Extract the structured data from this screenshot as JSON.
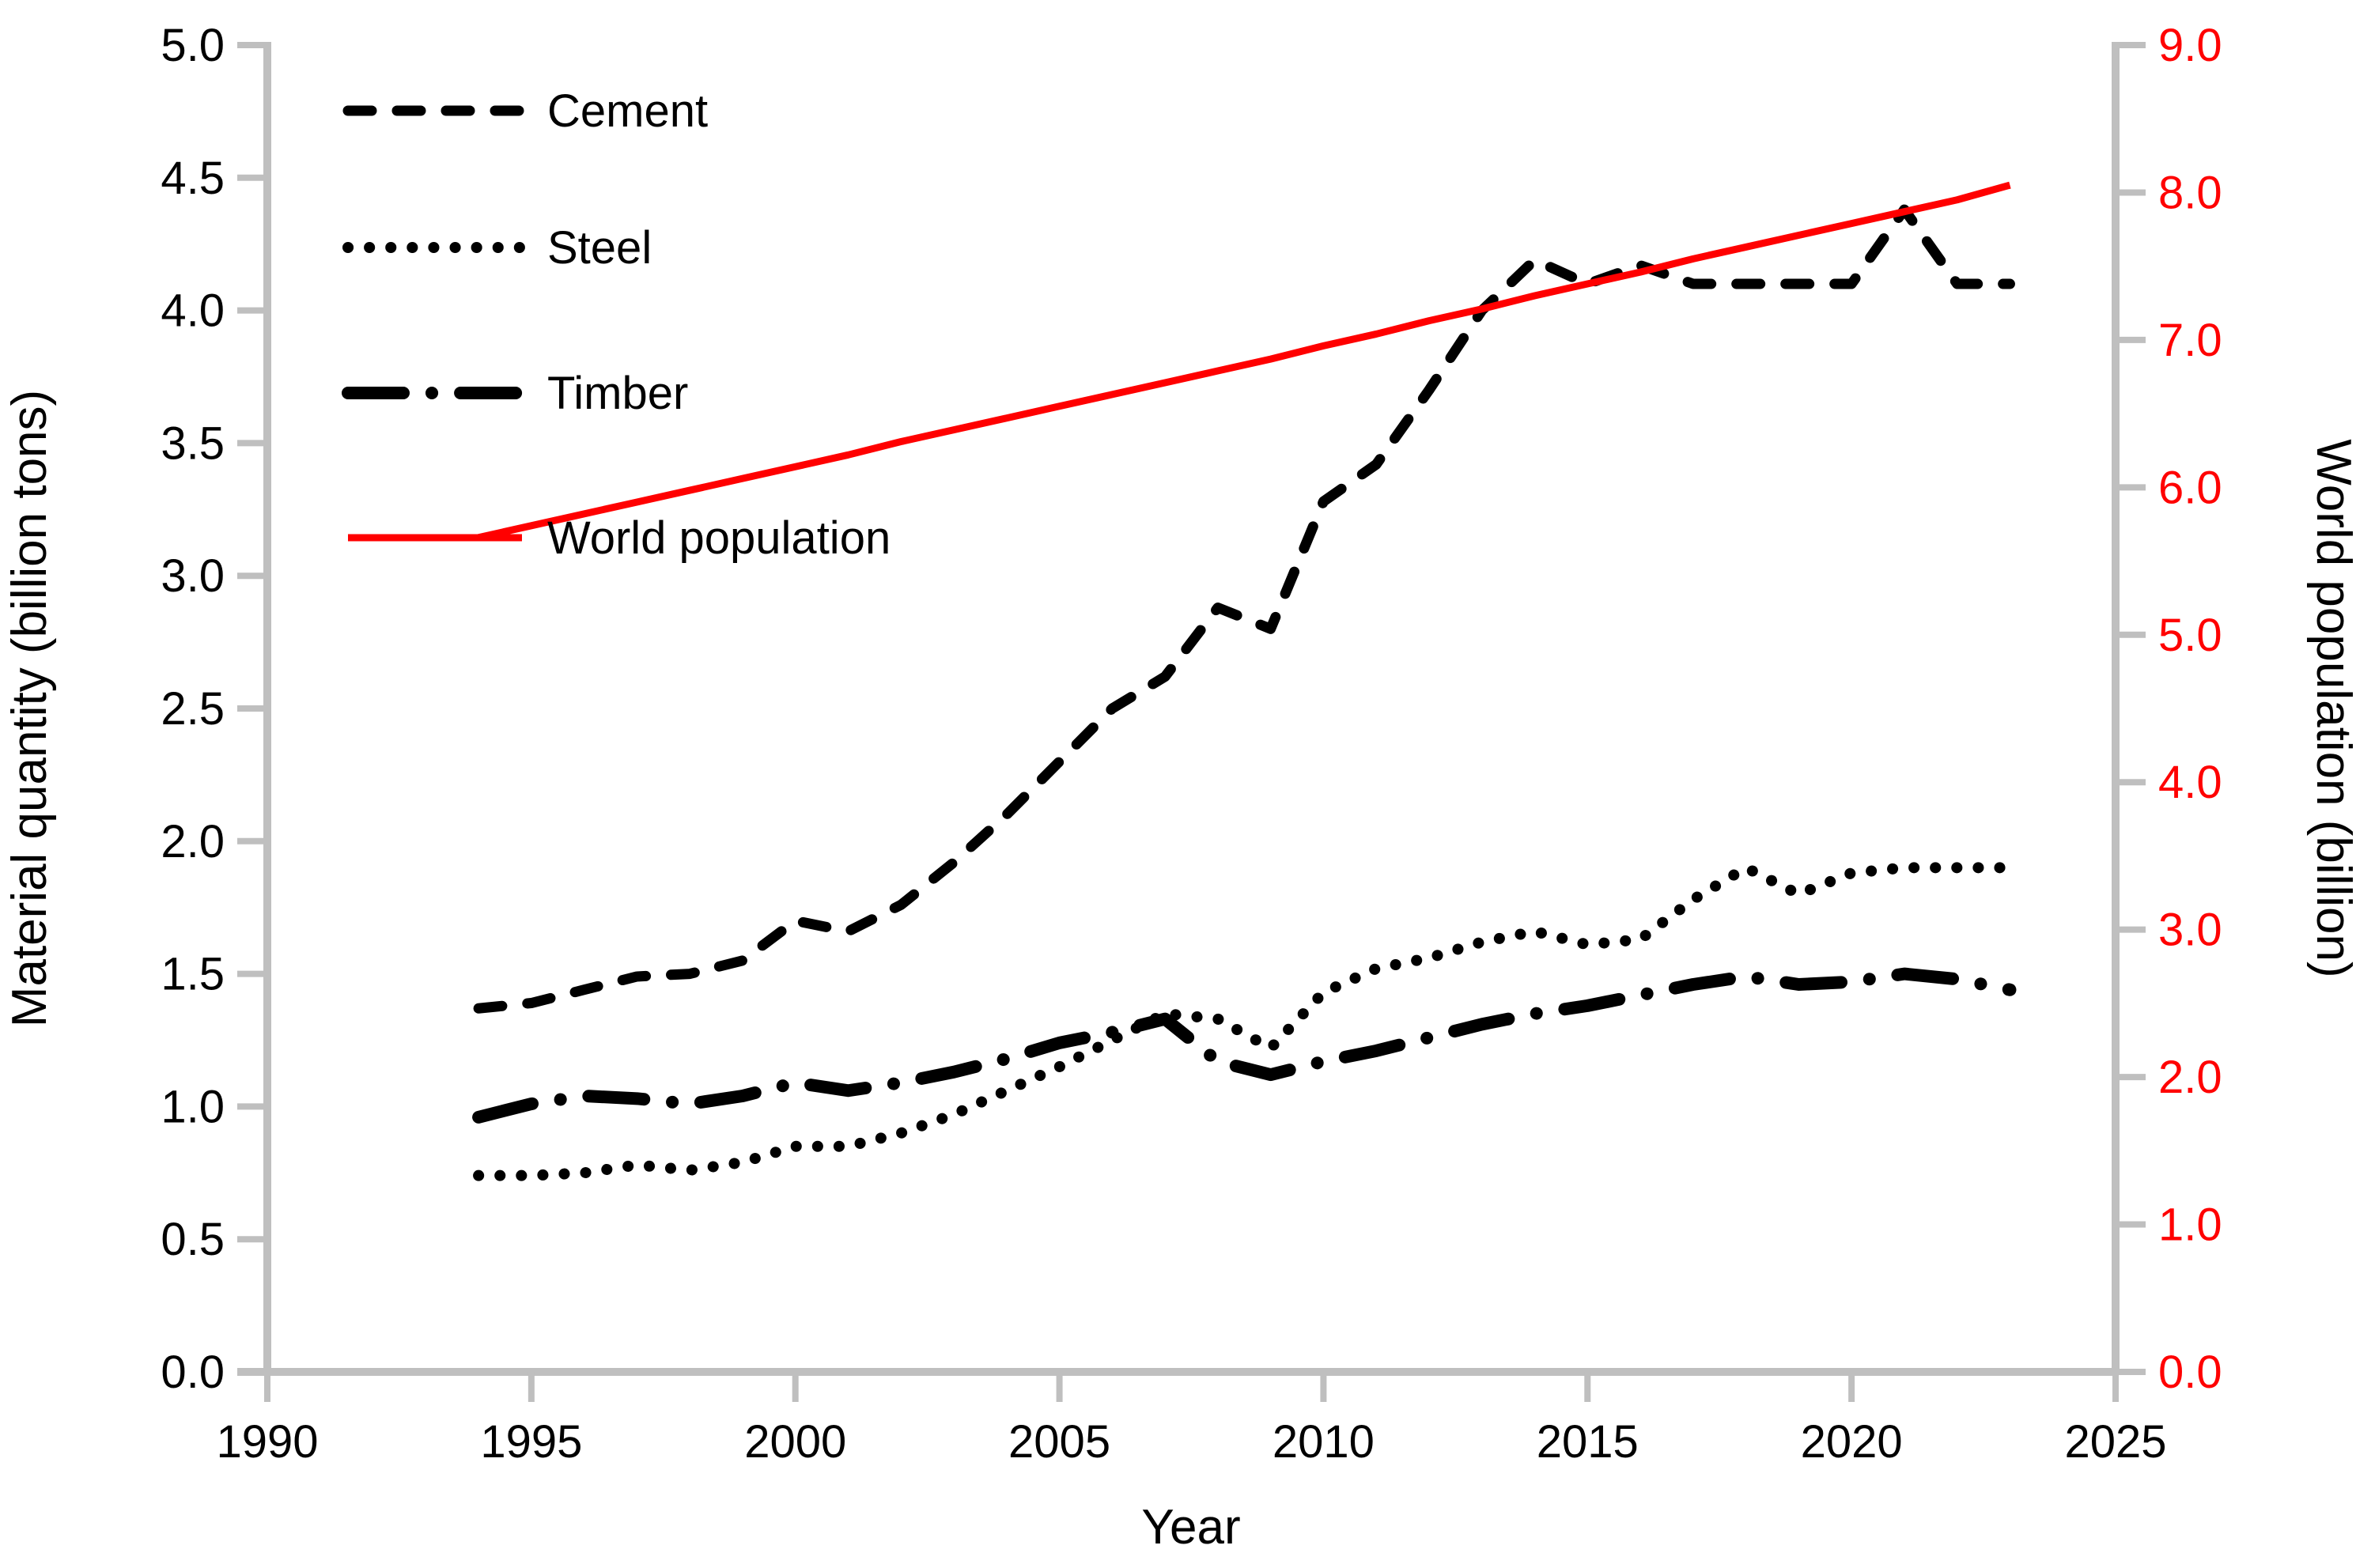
{
  "chart_data": {
    "type": "line",
    "title": "",
    "xlabel": "Year",
    "ylabel_left": "Material quantity (billion tons)",
    "ylabel_right": "World population (billion)",
    "xlim": [
      1990,
      2025
    ],
    "ylim_left": [
      0.0,
      5.0
    ],
    "ylim_right": [
      0.0,
      9.0
    ],
    "grid": "off",
    "legend_position": "top-left-inside",
    "x_ticks": [
      "1990",
      "1995",
      "2000",
      "2005",
      "2010",
      "2015",
      "2020",
      "2025"
    ],
    "left_ticks": [
      "0.0",
      "0.5",
      "1.0",
      "1.5",
      "2.0",
      "2.5",
      "3.0",
      "3.5",
      "4.0",
      "4.5",
      "5.0"
    ],
    "right_ticks": [
      "0.0",
      "1.0",
      "2.0",
      "3.0",
      "4.0",
      "5.0",
      "6.0",
      "7.0",
      "8.0",
      "9.0"
    ],
    "x": [
      1994,
      1995,
      1996,
      1997,
      1998,
      1999,
      2000,
      2001,
      2002,
      2003,
      2004,
      2005,
      2006,
      2007,
      2008,
      2009,
      2010,
      2011,
      2012,
      2013,
      2014,
      2015,
      2016,
      2017,
      2018,
      2019,
      2020,
      2021,
      2022,
      2023
    ],
    "series": [
      {
        "name": "Cement",
        "axis": "left",
        "style": "dashed",
        "color": "#000000",
        "values": [
          1.37,
          1.39,
          1.44,
          1.49,
          1.5,
          1.55,
          1.7,
          1.66,
          1.76,
          1.92,
          2.1,
          2.3,
          2.5,
          2.62,
          2.88,
          2.8,
          3.28,
          3.42,
          3.7,
          4.0,
          4.19,
          4.1,
          4.17,
          4.1,
          4.1,
          4.1,
          4.1,
          4.38,
          4.1,
          4.1
        ]
      },
      {
        "name": "Steel",
        "axis": "left",
        "style": "dotted",
        "color": "#000000",
        "values": [
          0.74,
          0.74,
          0.75,
          0.78,
          0.76,
          0.79,
          0.85,
          0.85,
          0.9,
          0.97,
          1.06,
          1.15,
          1.25,
          1.35,
          1.33,
          1.22,
          1.43,
          1.52,
          1.56,
          1.62,
          1.66,
          1.61,
          1.63,
          1.78,
          1.9,
          1.8,
          1.88,
          1.9,
          1.9,
          1.9
        ]
      },
      {
        "name": "Timber",
        "axis": "left",
        "style": "dashdot",
        "color": "#000000",
        "values": [
          0.96,
          1.01,
          1.04,
          1.03,
          1.01,
          1.04,
          1.09,
          1.06,
          1.09,
          1.13,
          1.18,
          1.24,
          1.28,
          1.33,
          1.17,
          1.12,
          1.17,
          1.21,
          1.26,
          1.31,
          1.35,
          1.38,
          1.42,
          1.46,
          1.49,
          1.46,
          1.47,
          1.5,
          1.48,
          1.44
        ]
      },
      {
        "name": "World population",
        "axis": "right",
        "style": "solid",
        "color": "#FF0000",
        "values": [
          5.66,
          5.74,
          5.82,
          5.9,
          5.98,
          6.06,
          6.14,
          6.22,
          6.31,
          6.39,
          6.47,
          6.55,
          6.63,
          6.71,
          6.79,
          6.87,
          6.96,
          7.04,
          7.13,
          7.21,
          7.3,
          7.38,
          7.46,
          7.55,
          7.63,
          7.71,
          7.79,
          7.87,
          7.95,
          8.05
        ]
      }
    ],
    "colors": {
      "black_series": "#000000",
      "population_series": "#FF0000",
      "axis_gray": "#BFBFBF",
      "right_tick_label": "#FF0000",
      "background": "#FFFFFF"
    },
    "legend": [
      {
        "label": "Cement"
      },
      {
        "label": "Steel"
      },
      {
        "label": "Timber"
      },
      {
        "label": "World population"
      }
    ]
  }
}
